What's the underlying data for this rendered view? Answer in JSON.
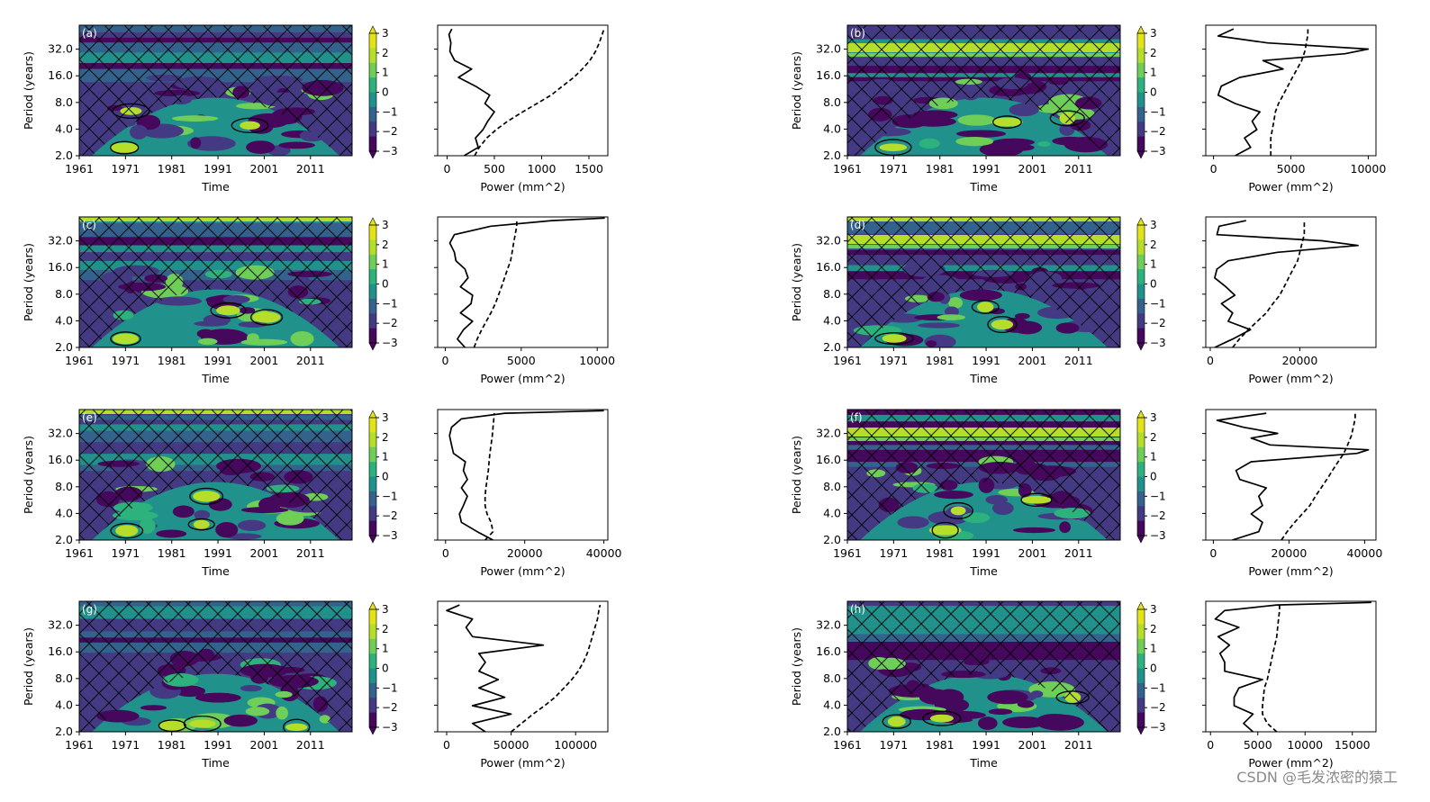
{
  "colors": {
    "viridis": [
      "#440154",
      "#3b528b",
      "#21918c",
      "#5ec962",
      "#fde725"
    ],
    "levels": [
      "#46085c",
      "#443a83",
      "#33638d",
      "#21918c",
      "#2db27d",
      "#6ece58",
      "#b5de2b",
      "#e3e418"
    ],
    "line": "#000000",
    "hatch": "#000000",
    "watermark": "#8a8a8a"
  },
  "watermark": "CSDN @毛发浓密的猿工",
  "chart_data": [
    {
      "id": "a",
      "type": "heatmap",
      "label": "(a)",
      "xlabel": "Time",
      "ylabel": "Period (years)",
      "xticks": [
        "1961",
        "1971",
        "1981",
        "1991",
        "2001",
        "2011"
      ],
      "yticks": [
        "2.0",
        "4.0",
        "8.0",
        "16.0",
        "32.0"
      ],
      "colorbar_ticks": [
        "3",
        "2",
        "1",
        "0",
        "−1",
        "−2",
        "−3"
      ],
      "power_plot": {
        "type": "line",
        "xlabel": "Power (mm^2)",
        "xticks": [
          "0",
          "500",
          "1000",
          "1500"
        ],
        "xlim": [
          -100,
          1700
        ],
        "series": [
          {
            "style": "solid",
            "period": [
              2.0,
              2.5,
              3.2,
              4.0,
              5.0,
              6.4,
              8.0,
              10.0,
              12.7,
              16.0,
              20.0,
              25.0,
              32.0,
              40.0,
              50.0,
              58.0
            ],
            "power": [
              180,
              330,
              300,
              380,
              430,
              500,
              400,
              450,
              300,
              120,
              260,
              80,
              30,
              40,
              20,
              50
            ]
          },
          {
            "style": "dashed",
            "period": [
              2.0,
              2.5,
              3.2,
              4.0,
              5.0,
              6.4,
              8.0,
              10.0,
              12.7,
              16.0,
              20.0,
              25.0,
              32.0,
              40.0,
              50.0,
              58.0
            ],
            "power": [
              290,
              340,
              420,
              520,
              640,
              800,
              950,
              1100,
              1220,
              1340,
              1430,
              1510,
              1570,
              1610,
              1640,
              1660
            ]
          }
        ]
      }
    },
    {
      "id": "b",
      "type": "heatmap",
      "label": "(b)",
      "xlabel": "Time",
      "ylabel": "Period (years)",
      "xticks": [
        "1961",
        "1971",
        "1981",
        "1991",
        "2001",
        "2011"
      ],
      "yticks": [
        "2.0",
        "4.0",
        "8.0",
        "16.0",
        "32.0"
      ],
      "colorbar_ticks": [
        "3",
        "2",
        "1",
        "0",
        "−1",
        "−2",
        "−3"
      ],
      "power_plot": {
        "type": "line",
        "xlabel": "Power (mm^2)",
        "xticks": [
          "0",
          "5000",
          "10000"
        ],
        "xlim": [
          -500,
          10500
        ],
        "series": [
          {
            "style": "solid",
            "period": [
              2.0,
              2.5,
              3.2,
              4.0,
              5.0,
              6.4,
              8.0,
              10.0,
              12.7,
              16.0,
              20.0,
              25.0,
              30.0,
              34.0,
              40.0,
              48.0,
              58.0
            ],
            "power": [
              1400,
              2400,
              2000,
              2800,
              2500,
              3000,
              1400,
              300,
              500,
              1700,
              4500,
              3200,
              8500,
              10000,
              3500,
              300,
              1300
            ]
          },
          {
            "style": "dashed",
            "period": [
              2.0,
              2.5,
              3.2,
              4.0,
              5.0,
              6.4,
              8.0,
              10.0,
              12.7,
              16.0,
              20.0,
              25.0,
              32.0,
              40.0,
              50.0,
              58.0
            ],
            "power": [
              3700,
              3700,
              3700,
              3800,
              3900,
              4000,
              4200,
              4500,
              4800,
              5100,
              5400,
              5700,
              5900,
              6000,
              6100,
              6100
            ]
          }
        ]
      }
    },
    {
      "id": "c",
      "type": "heatmap",
      "label": "(c)",
      "xlabel": "Time",
      "ylabel": "Period (years)",
      "xticks": [
        "1961",
        "1971",
        "1981",
        "1991",
        "2001",
        "2011"
      ],
      "yticks": [
        "2.0",
        "4.0",
        "8.0",
        "16.0",
        "32.0"
      ],
      "colorbar_ticks": [
        "3",
        "2",
        "1",
        "0",
        "−1",
        "−2",
        "−3"
      ],
      "power_plot": {
        "type": "line",
        "xlabel": "Power (mm^2)",
        "xticks": [
          "0",
          "5000",
          "10000"
        ],
        "xlim": [
          -500,
          10700
        ],
        "series": [
          {
            "style": "solid",
            "period": [
              2.0,
              2.5,
              3.2,
              4.0,
              5.0,
              6.4,
              8.0,
              10.0,
              12.7,
              16.0,
              20.0,
              25.0,
              32.0,
              40.0,
              50.0,
              58.0,
              62.0
            ],
            "power": [
              1300,
              800,
              1200,
              1800,
              1000,
              1700,
              1800,
              1000,
              1500,
              1300,
              700,
              600,
              300,
              600,
              3000,
              7000,
              10500
            ]
          },
          {
            "style": "dashed",
            "period": [
              2.0,
              2.5,
              3.2,
              4.0,
              5.0,
              6.4,
              8.0,
              10.0,
              12.7,
              16.0,
              20.0,
              25.0,
              32.0,
              40.0,
              50.0,
              58.0
            ],
            "power": [
              1900,
              2100,
              2400,
              2700,
              3000,
              3300,
              3500,
              3700,
              3900,
              4100,
              4300,
              4400,
              4500,
              4600,
              4700,
              4700
            ]
          }
        ]
      }
    },
    {
      "id": "d",
      "type": "heatmap",
      "label": "(d)",
      "xlabel": "Time",
      "ylabel": "Period (years)",
      "xticks": [
        "1961",
        "1971",
        "1981",
        "1991",
        "2001",
        "2011"
      ],
      "yticks": [
        "2.0",
        "4.0",
        "8.0",
        "16.0",
        "32.0"
      ],
      "colorbar_ticks": [
        "3",
        "2",
        "1",
        "0",
        "−1",
        "−2",
        "−3"
      ],
      "power_plot": {
        "type": "line",
        "xlabel": "Power (mm^2)",
        "xticks": [
          "0",
          "20000"
        ],
        "xlim": [
          -1000,
          37000
        ],
        "series": [
          {
            "style": "solid",
            "period": [
              2.0,
              2.5,
              3.2,
              4.0,
              5.0,
              6.4,
              8.0,
              10.0,
              12.7,
              16.0,
              20.0,
              25.0,
              30.0,
              34.0,
              40.0,
              50.0,
              58.0
            ],
            "power": [
              1000,
              5000,
              9000,
              4000,
              5000,
              2500,
              5500,
              3500,
              1000,
              1500,
              4000,
              15000,
              33000,
              25000,
              1500,
              2000,
              8000
            ]
          },
          {
            "style": "dashed",
            "period": [
              2.0,
              2.5,
              3.2,
              4.0,
              5.0,
              6.4,
              8.0,
              10.0,
              12.7,
              16.0,
              20.0,
              25.0,
              32.0,
              40.0,
              50.0,
              58.0
            ],
            "power": [
              5000,
              6500,
              8500,
              10500,
              12500,
              14000,
              15500,
              16500,
              17500,
              18500,
              19500,
              20000,
              20500,
              21000,
              21000,
              21000
            ]
          }
        ]
      }
    },
    {
      "id": "e",
      "type": "heatmap",
      "label": "(e)",
      "xlabel": "Time",
      "ylabel": "Period (years)",
      "xticks": [
        "1961",
        "1971",
        "1981",
        "1991",
        "2001",
        "2011"
      ],
      "yticks": [
        "2.0",
        "4.0",
        "8.0",
        "16.0",
        "32.0"
      ],
      "colorbar_ticks": [
        "3",
        "2",
        "1",
        "0",
        "−1",
        "−2",
        "−3"
      ],
      "power_plot": {
        "type": "line",
        "xlabel": "Power (mm^2)",
        "xticks": [
          "0",
          "20000",
          "40000"
        ],
        "xlim": [
          -2000,
          41000
        ],
        "series": [
          {
            "style": "solid",
            "period": [
              2.0,
              2.5,
              3.2,
              4.0,
              5.0,
              6.4,
              8.0,
              10.0,
              12.7,
              16.0,
              20.0,
              25.0,
              32.0,
              40.0,
              50.0,
              58.0,
              62.0
            ],
            "power": [
              12000,
              8000,
              4000,
              3500,
              4500,
              5500,
              4000,
              5500,
              4500,
              5000,
              2000,
              1500,
              1000,
              1500,
              4000,
              15000,
              40000
            ]
          },
          {
            "style": "dashed",
            "period": [
              2.0,
              2.5,
              3.2,
              4.0,
              5.0,
              6.4,
              8.0,
              10.0,
              12.7,
              16.0,
              20.0,
              25.0,
              32.0,
              40.0,
              50.0,
              58.0
            ],
            "power": [
              10000,
              12000,
              11500,
              10500,
              10000,
              10000,
              10200,
              10500,
              10800,
              11000,
              11200,
              11500,
              11800,
              12000,
              12200,
              12300
            ]
          }
        ]
      }
    },
    {
      "id": "f",
      "type": "heatmap",
      "label": "(f)",
      "xlabel": "Time",
      "ylabel": "Period (years)",
      "xticks": [
        "1961",
        "1971",
        "1981",
        "1991",
        "2001",
        "2011"
      ],
      "yticks": [
        "2.0",
        "4.0",
        "8.0",
        "16.0",
        "32.0"
      ],
      "colorbar_ticks": [
        "3",
        "2",
        "1",
        "0",
        "−1",
        "−2",
        "−3"
      ],
      "power_plot": {
        "type": "line",
        "xlabel": "Power (mm^2)",
        "xticks": [
          "0",
          "20000",
          "40000"
        ],
        "xlim": [
          -2000,
          43000
        ],
        "series": [
          {
            "style": "solid",
            "period": [
              2.0,
              2.5,
              3.2,
              4.0,
              5.0,
              6.4,
              8.0,
              10.0,
              12.7,
              16.0,
              20.0,
              22.0,
              25.0,
              30.0,
              34.0,
              40.0,
              48.0,
              58.0
            ],
            "power": [
              5000,
              12000,
              13000,
              10000,
              13000,
              12000,
              14000,
              7000,
              6000,
              10000,
              38000,
              41000,
              15000,
              10000,
              17000,
              8000,
              1000,
              14000
            ]
          },
          {
            "style": "dashed",
            "period": [
              2.0,
              2.5,
              3.2,
              4.0,
              5.0,
              6.4,
              8.0,
              10.0,
              12.7,
              16.0,
              20.0,
              25.0,
              32.0,
              40.0,
              50.0,
              58.0
            ],
            "power": [
              18000,
              19500,
              21500,
              23500,
              25500,
              27000,
              28500,
              30000,
              31500,
              33000,
              34500,
              35500,
              36500,
              37000,
              37500,
              37500
            ]
          }
        ]
      }
    },
    {
      "id": "g",
      "type": "heatmap",
      "label": "(g)",
      "xlabel": "Time",
      "ylabel": "Period (years)",
      "xticks": [
        "1961",
        "1971",
        "1981",
        "1991",
        "2001",
        "2011"
      ],
      "yticks": [
        "2.0",
        "4.0",
        "8.0",
        "16.0",
        "32.0"
      ],
      "colorbar_ticks": [
        "3",
        "2",
        "1",
        "0",
        "−1",
        "−2",
        "−3"
      ],
      "power_plot": {
        "type": "line",
        "xlabel": "Power (mm^2)",
        "xticks": [
          "0",
          "50000",
          "100000"
        ],
        "xlim": [
          -7000,
          125000
        ],
        "series": [
          {
            "style": "solid",
            "period": [
              2.0,
              2.5,
              3.2,
              4.0,
              5.0,
              6.4,
              8.0,
              10.0,
              12.7,
              16.0,
              20.0,
              25.0,
              32.0,
              40.0,
              50.0,
              58.0
            ],
            "power": [
              30000,
              20000,
              50000,
              20000,
              45000,
              25000,
              40000,
              25000,
              30000,
              25000,
              75000,
              20000,
              15000,
              20000,
              0,
              10000
            ]
          },
          {
            "style": "dashed",
            "period": [
              2.0,
              2.5,
              3.2,
              4.0,
              5.0,
              6.4,
              8.0,
              10.0,
              12.7,
              16.0,
              20.0,
              25.0,
              32.0,
              40.0,
              50.0,
              58.0
            ],
            "power": [
              50000,
              58000,
              67000,
              76000,
              84000,
              91000,
              97000,
              102000,
              106000,
              109000,
              111000,
              113000,
              115000,
              117000,
              118000,
              119000
            ]
          }
        ]
      }
    },
    {
      "id": "h",
      "type": "heatmap",
      "label": "(h)",
      "xlabel": "Time",
      "ylabel": "Period (years)",
      "xticks": [
        "1961",
        "1971",
        "1981",
        "1991",
        "2001",
        "2011"
      ],
      "yticks": [
        "2.0",
        "4.0",
        "8.0",
        "16.0",
        "32.0"
      ],
      "colorbar_ticks": [
        "3",
        "2",
        "1",
        "0",
        "−1",
        "−2",
        "−3"
      ],
      "power_plot": {
        "type": "line",
        "xlabel": "Power (mm^2)",
        "xticks": [
          "0",
          "5000",
          "10000",
          "15000"
        ],
        "xlim": [
          -500,
          17500
        ],
        "series": [
          {
            "style": "solid",
            "period": [
              2.0,
              2.5,
              3.2,
              4.0,
              5.0,
              6.4,
              8.0,
              10.0,
              12.7,
              16.0,
              20.0,
              25.0,
              32.0,
              40.0,
              50.0,
              58.0,
              62.0
            ],
            "power": [
              4500,
              3500,
              4500,
              2500,
              2500,
              3000,
              5500,
              1500,
              1500,
              1000,
              2000,
              800,
              3000,
              500,
              1500,
              7000,
              17000
            ]
          },
          {
            "style": "dashed",
            "period": [
              2.0,
              2.5,
              3.2,
              4.0,
              5.0,
              6.4,
              8.0,
              10.0,
              12.7,
              16.0,
              20.0,
              25.0,
              32.0,
              40.0,
              50.0,
              58.0
            ],
            "power": [
              7000,
              6000,
              5500,
              5500,
              5600,
              5700,
              6000,
              6200,
              6400,
              6600,
              6800,
              7000,
              7100,
              7200,
              7300,
              7300
            ]
          }
        ]
      }
    }
  ]
}
